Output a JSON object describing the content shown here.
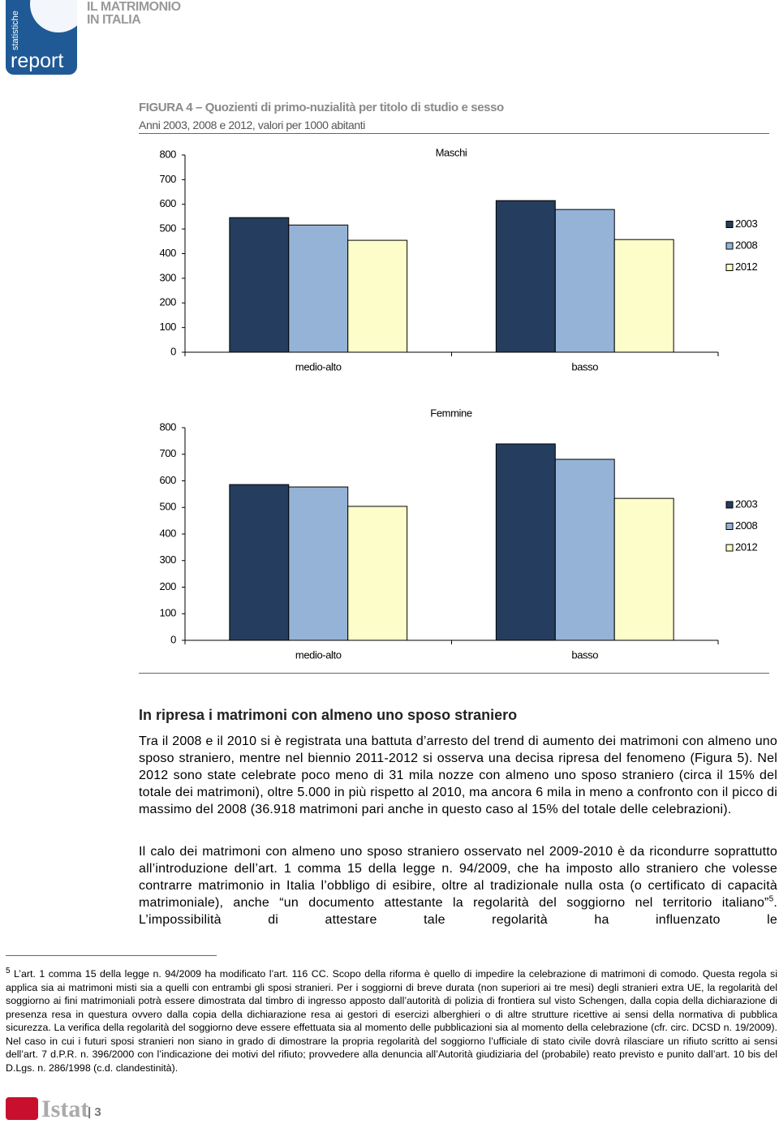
{
  "header": {
    "series_label": "statistiche",
    "brand": "report",
    "title_line1": "IL MATRIMONIO",
    "title_line2": "IN ITALIA"
  },
  "figure": {
    "title": "FIGURA 4 – Quozienti di primo-nuzialità per titolo di studio e sesso",
    "subtitle": "Anni 2003, 2008 e 2012, valori per 1000 abitanti"
  },
  "chart_data": [
    {
      "type": "bar",
      "title": "Maschi",
      "categories": [
        "medio-alto",
        "basso"
      ],
      "series": [
        {
          "name": "2003",
          "color": "#253d5e",
          "values": [
            546,
            615
          ]
        },
        {
          "name": "2008",
          "color": "#95b3d7",
          "values": [
            516,
            579
          ]
        },
        {
          "name": "2012",
          "color": "#fdfdc9",
          "values": [
            454,
            457
          ]
        }
      ],
      "ylim": [
        0,
        800
      ],
      "yticks": [
        0,
        100,
        200,
        300,
        400,
        500,
        600,
        700,
        800
      ],
      "grid": false,
      "legend": "right"
    },
    {
      "type": "bar",
      "title": "Femmine",
      "categories": [
        "medio-alto",
        "basso"
      ],
      "series": [
        {
          "name": "2003",
          "color": "#253d5e",
          "values": [
            586,
            739
          ]
        },
        {
          "name": "2008",
          "color": "#95b3d7",
          "values": [
            577,
            681
          ]
        },
        {
          "name": "2012",
          "color": "#fdfdc9",
          "values": [
            504,
            534
          ]
        }
      ],
      "ylim": [
        0,
        800
      ],
      "yticks": [
        0,
        100,
        200,
        300,
        400,
        500,
        600,
        700,
        800
      ],
      "grid": false,
      "legend": "right"
    }
  ],
  "section": {
    "heading": "In ripresa i matrimoni con almeno uno sposo straniero",
    "paragraph1": "Tra il 2008 e il 2010 si è registrata una battuta d’arresto del trend di aumento dei matrimoni con almeno uno sposo straniero, mentre nel biennio 2011-2012 si osserva una decisa ripresa del fenomeno (Figura 5). Nel 2012 sono state celebrate poco meno di 31 mila nozze con almeno uno sposo straniero (circa il 15% del totale dei matrimoni), oltre 5.000 in più rispetto al 2010, ma ancora 6 mila in meno a confronto con il picco di massimo del 2008 (36.918 matrimoni pari anche in questo caso al 15% del totale delle celebrazioni).",
    "paragraph2_before": "Il calo dei matrimoni con almeno uno sposo straniero osservato nel 2009-2010 è da ricondurre soprattutto all’introduzione dell’art. 1 comma 15 della legge n. 94/2009, che ha imposto allo straniero che volesse contrarre matrimonio in Italia l’obbligo di esibire, oltre al tradizionale nulla osta (o certificato di capacità matrimoniale), anche “un documento attestante la regolarità del soggiorno nel territorio italiano”",
    "paragraph2_note": "5",
    "paragraph2_after": ". L’impossibilità di attestare tale regolarità ha influenzato le"
  },
  "footnote": {
    "number": "5",
    "text": "L’art. 1 comma 15 della legge n. 94/2009 ha modificato l’art. 116 CC. Scopo della riforma è quello di impedire la celebrazione di matrimoni di comodo. Questa regola si applica sia ai matrimoni misti sia a quelli con entrambi gli sposi stranieri. Per i soggiorni di breve durata (non superiori ai tre mesi) degli stranieri extra UE, la regolarità del soggiorno ai fini matrimoniali potrà essere dimostrata dal timbro di ingresso apposto dall’autorità di polizia di frontiera sul visto Schengen, dalla copia della dichiarazione di presenza resa in questura ovvero dalla copia della dichiarazione resa ai gestori di esercizi alberghieri o di altre strutture ricettive ai sensi della normativa di pubblica sicurezza. La verifica della regolarità del soggiorno deve essere effettuata sia al momento delle pubblicazioni sia al momento della celebrazione (cfr. circ. DCSD n. 19/2009). Nel caso in cui i futuri sposi stranieri non siano in grado di dimostrare la propria regolarità del soggiorno l’ufficiale di stato civile dovrà rilasciare un rifiuto scritto ai sensi dell’art. 7 d.P.R. n. 396/2000 con l’indicazione dei motivi del rifiuto; provvedere alla denuncia all’Autorità giudiziaria del (probabile) reato previsto e punito dall’art. 10 bis del D.Lgs. n. 286/1998 (c.d. clandestinità)."
  },
  "footer": {
    "brand": "Istat",
    "page": "3"
  }
}
